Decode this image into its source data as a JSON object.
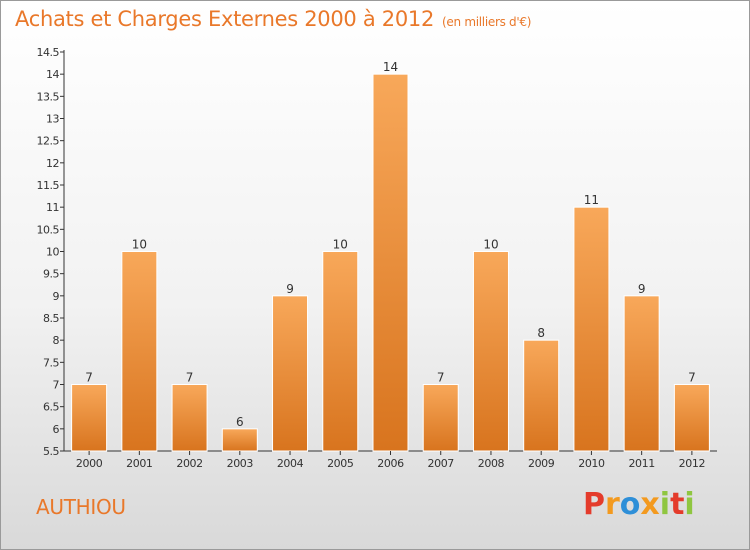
{
  "header": {
    "title": "Achats et Charges Externes 2000 à 2012",
    "unit": "(en milliers d'€)"
  },
  "footer": {
    "commune": "AUTHIOU",
    "logo": "Proxiti"
  },
  "colors": {
    "accent": "#e9782a",
    "bar_top": "#f8a85a",
    "bar_bottom": "#d8741e",
    "logo_letters": [
      "#e43b2b",
      "#f39a1f",
      "#2e8fd8",
      "#f39a1f",
      "#8fc640",
      "#e43b2b",
      "#8fc640"
    ]
  },
  "chart_data": {
    "type": "bar",
    "categories": [
      "2000",
      "2001",
      "2002",
      "2003",
      "2004",
      "2005",
      "2006",
      "2007",
      "2008",
      "2009",
      "2010",
      "2011",
      "2012"
    ],
    "values": [
      7,
      10,
      7,
      6,
      9,
      10,
      14,
      7,
      10,
      8,
      11,
      9,
      7
    ],
    "title": "Achats et Charges Externes 2000 à 2012",
    "subtitle": "(en milliers d'€)",
    "xlabel": "",
    "ylabel": "",
    "ylim": [
      5.5,
      14.5
    ],
    "yticks": [
      "5.5",
      "6",
      "6.5",
      "7",
      "7.5",
      "8",
      "8.5",
      "9",
      "9.5",
      "10",
      "10.5",
      "11",
      "11.5",
      "12",
      "12.5",
      "13",
      "13.5",
      "14",
      "14.5"
    ],
    "grid": false,
    "data_labels": true
  }
}
